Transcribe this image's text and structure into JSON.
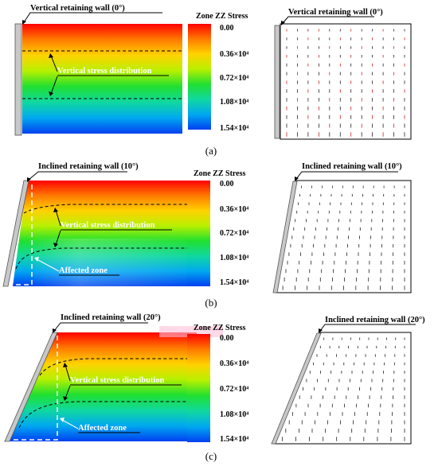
{
  "panels": [
    {
      "label": "(a)",
      "left_title": "Vertical retaining wall (0°)",
      "right_title": "Vertical retaining wall (0°)",
      "annotation": "Vertical stress distribution",
      "affected_label": "",
      "colorbar_title": "Zone ZZ Stress",
      "colorbar_ticks": [
        "0.00",
        "0.36×10⁴",
        "0.72×10⁴",
        "1.08×10⁴",
        "1.54×10⁴"
      ]
    },
    {
      "label": "(b)",
      "left_title": "Inclined retaining wall (10°)",
      "right_title": "Inclined retaining wall (10°)",
      "annotation": "Vertical stress distribution",
      "affected_label": "Affected zone",
      "colorbar_title": "Zone ZZ Stress",
      "colorbar_ticks": [
        "0.00",
        "0.36×10⁴",
        "0.72×10⁴",
        "1.08×10⁴",
        "1.54×10⁴"
      ]
    },
    {
      "label": "(c)",
      "left_title": "Inclined retaining wall (20°)",
      "right_title": "Inclined retaining wall (20°)",
      "annotation": "Vertical stress distribution",
      "affected_label": "Affected zone",
      "colorbar_title": "Zone ZZ Stress",
      "colorbar_ticks": [
        "0.00",
        "0.36×10⁴",
        "0.72×10⁴",
        "1.08×10⁴",
        "1.54×10⁴"
      ]
    }
  ],
  "colors": {
    "stress_scale": [
      "#ff0000",
      "#ff7a00",
      "#ffd200",
      "#b8f000",
      "#20e030",
      "#10d8a0",
      "#00a8f0",
      "#0040f0"
    ],
    "wall": "#c8c8c8",
    "vector": "#222222",
    "vector_accent": "#d02020"
  }
}
